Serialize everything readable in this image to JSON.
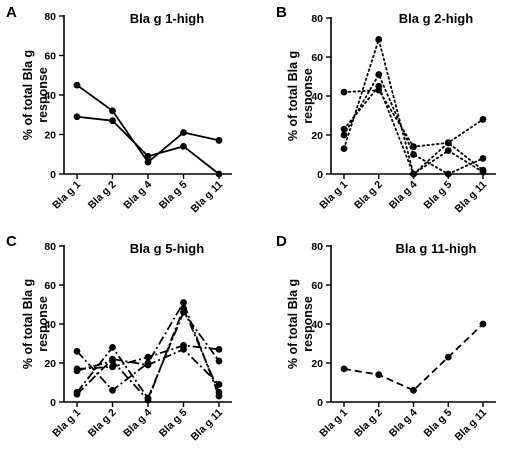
{
  "chart_data": [
    {
      "type": "line",
      "panel_letter": "A",
      "title": "Bla g 1-high",
      "ylabel": "% of total Bla g response",
      "xlabel": "",
      "categories": [
        "Bla g 1",
        "Bla g 2",
        "Bla g 4",
        "Bla g 5",
        "Bla g 11"
      ],
      "ylim": [
        0,
        80
      ],
      "yticks": [
        0,
        20,
        40,
        60,
        80
      ],
      "line_style": "solid",
      "series": [
        {
          "values": [
            45,
            32,
            6,
            21,
            17
          ]
        },
        {
          "values": [
            29,
            27,
            9,
            14,
            0
          ]
        }
      ]
    },
    {
      "type": "line",
      "panel_letter": "B",
      "title": "Bla g 2-high",
      "ylabel": "% of total Bla g response",
      "xlabel": "",
      "categories": [
        "Bla g 1",
        "Bla g 2",
        "Bla g 4",
        "Bla g 5",
        "Bla g 11"
      ],
      "ylim": [
        0,
        80
      ],
      "yticks": [
        0,
        20,
        40,
        60,
        80
      ],
      "line_style": "dotted",
      "series": [
        {
          "values": [
            13,
            69,
            0,
            16,
            2
          ]
        },
        {
          "values": [
            42,
            43,
            14,
            16,
            28
          ]
        },
        {
          "values": [
            20,
            51,
            10,
            0,
            8
          ]
        },
        {
          "values": [
            23,
            45,
            0,
            12,
            1
          ]
        }
      ]
    },
    {
      "type": "line",
      "panel_letter": "C",
      "title": "Bla g 5-high",
      "ylabel": "% of total Bla g response",
      "xlabel": "",
      "categories": [
        "Bla g 1",
        "Bla g 2",
        "Bla g 4",
        "Bla g 5",
        "Bla g 11"
      ],
      "ylim": [
        0,
        80
      ],
      "yticks": [
        0,
        20,
        40,
        60,
        80
      ],
      "line_style": "dash-dot",
      "series": [
        {
          "values": [
            26,
            6,
            20,
            51,
            3
          ]
        },
        {
          "values": [
            5,
            28,
            2,
            46,
            21
          ]
        },
        {
          "values": [
            17,
            18,
            23,
            29,
            27
          ]
        },
        {
          "values": [
            4,
            22,
            19,
            27,
            9
          ]
        },
        {
          "values": [
            16,
            21,
            1,
            48,
            5
          ]
        }
      ]
    },
    {
      "type": "line",
      "panel_letter": "D",
      "title": "Bla g 11-high",
      "ylabel": "% of total Bla g response",
      "xlabel": "",
      "categories": [
        "Bla g 1",
        "Bla g 2",
        "Bla g 4",
        "Bla g 5",
        "Bla g 11"
      ],
      "ylim": [
        0,
        80
      ],
      "yticks": [
        0,
        20,
        40,
        60,
        80
      ],
      "line_style": "dashed",
      "series": [
        {
          "values": [
            17,
            14,
            6,
            23,
            40
          ]
        }
      ]
    }
  ]
}
